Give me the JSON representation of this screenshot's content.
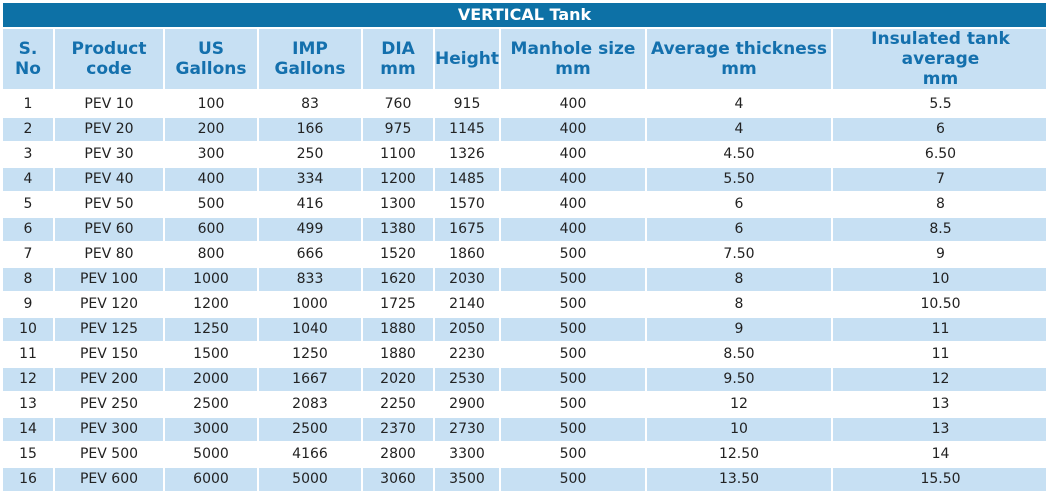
{
  "title": "VERTICAL Tank",
  "headers": [
    [
      "S.",
      "No"
    ],
    [
      "Product",
      "code"
    ],
    [
      "US",
      "Gallons"
    ],
    [
      "IMP",
      "Gallons"
    ],
    [
      "DIA",
      "mm"
    ],
    [
      "Height"
    ],
    [
      "Manhole size",
      "mm"
    ],
    [
      "Average thickness",
      "mm"
    ],
    [
      "Insulated tank average",
      "mm"
    ]
  ],
  "rows": [
    [
      "1",
      "PEV 10",
      "100",
      "83",
      "760",
      "915",
      "400",
      "4",
      "5.5"
    ],
    [
      "2",
      "PEV 20",
      "200",
      "166",
      "975",
      "1145",
      "400",
      "4",
      "6"
    ],
    [
      "3",
      "PEV 30",
      "300",
      "250",
      "1100",
      "1326",
      "400",
      "4.50",
      "6.50"
    ],
    [
      "4",
      "PEV 40",
      "400",
      "334",
      "1200",
      "1485",
      "400",
      "5.50",
      "7"
    ],
    [
      "5",
      "PEV 50",
      "500",
      "416",
      "1300",
      "1570",
      "400",
      "6",
      "8"
    ],
    [
      "6",
      "PEV 60",
      "600",
      "499",
      "1380",
      "1675",
      "400",
      "6",
      "8.5"
    ],
    [
      "7",
      "PEV 80",
      "800",
      "666",
      "1520",
      "1860",
      "500",
      "7.50",
      "9"
    ],
    [
      "8",
      "PEV 100",
      "1000",
      "833",
      "1620",
      "2030",
      "500",
      "8",
      "10"
    ],
    [
      "9",
      "PEV 120",
      "1200",
      "1000",
      "1725",
      "2140",
      "500",
      "8",
      "10.50"
    ],
    [
      "10",
      "PEV 125",
      "1250",
      "1040",
      "1880",
      "2050",
      "500",
      "9",
      "11"
    ],
    [
      "11",
      "PEV 150",
      "1500",
      "1250",
      "1880",
      "2230",
      "500",
      "8.50",
      "11"
    ],
    [
      "12",
      "PEV 200",
      "2000",
      "1667",
      "2020",
      "2530",
      "500",
      "9.50",
      "12"
    ],
    [
      "13",
      "PEV 250",
      "2500",
      "2083",
      "2250",
      "2900",
      "500",
      "12",
      "13"
    ],
    [
      "14",
      "PEV 300",
      "3000",
      "2500",
      "2370",
      "2730",
      "500",
      "10",
      "13"
    ],
    [
      "15",
      "PEV 500",
      "5000",
      "4166",
      "2800",
      "3300",
      "500",
      "12.50",
      "14"
    ],
    [
      "16",
      "PEV 600",
      "6000",
      "5000",
      "3060",
      "3500",
      "500",
      "13.50",
      "15.50"
    ]
  ],
  "colors": {
    "title_bg": "#0d71a6",
    "header_bg": "#c7e0f3",
    "header_text": "#1470ad",
    "stripe": "#c7e0f3"
  }
}
